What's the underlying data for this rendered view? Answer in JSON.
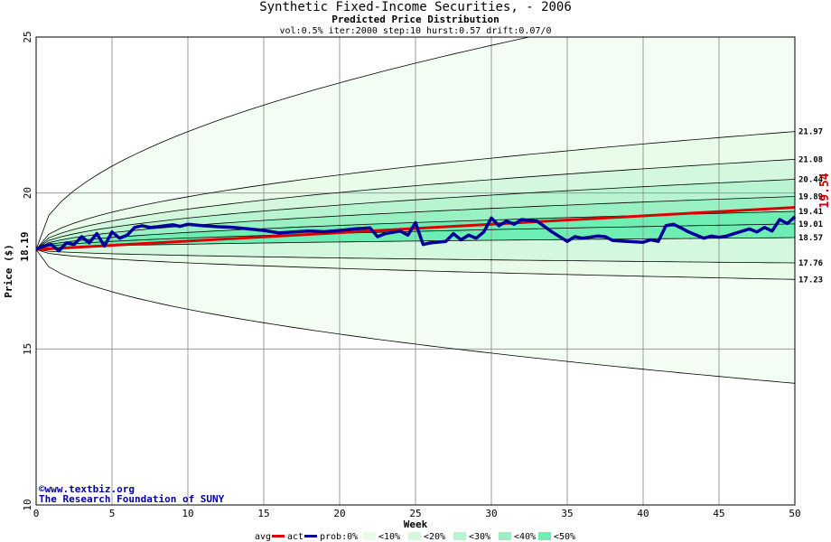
{
  "title": "Synthetic Fixed-Income Securities,  - 2006",
  "subtitle": "Predicted Price Distribution",
  "params": "vol:0.5% iter:2000 step:10 hurst:0.57 drift:0.07/0",
  "credits": [
    "©www.textbiz.org",
    "The Research Foundation of SUNY"
  ],
  "legend": {
    "avg_label": "avg",
    "act_label": "act",
    "prob_label": "prob:0%",
    "bands": [
      "<10%",
      "<20%",
      "<30%",
      "<40%",
      "<50%"
    ],
    "colors": {
      "avg": "#dd0000",
      "act": "#000099",
      "band_fills": [
        "#e9fbe9",
        "#d3f8dd",
        "#b9f4d0",
        "#99f0c3",
        "#6feeb3"
      ],
      "outer_fill": "#f3fdf3"
    }
  },
  "chart_data": {
    "type": "line",
    "title": "Synthetic Fixed-Income Securities,  - 2006",
    "subtitle": "Predicted Price Distribution",
    "xlabel": "Week",
    "ylabel": "Price ($)",
    "xlim": [
      0,
      50
    ],
    "ylim": [
      10,
      25
    ],
    "x_ticks": [
      0,
      5,
      10,
      15,
      20,
      25,
      30,
      35,
      40,
      45,
      50
    ],
    "y_ticks": [
      10,
      15,
      20,
      25
    ],
    "start_price": "18.19",
    "current_price": "19.54",
    "grid": true,
    "envelope": {
      "upper_end": 25.0,
      "upper_week": 32.5,
      "lower_end": 13.9
    },
    "boundaries": [
      {
        "end": 21.97,
        "label": "21.97"
      },
      {
        "end": 21.08,
        "label": "21.08"
      },
      {
        "end": 20.44,
        "label": "20.44"
      },
      {
        "end": 19.89,
        "label": "19.89"
      },
      {
        "end": 19.41,
        "label": "19.41"
      },
      {
        "end": 19.01,
        "label": "19.01"
      },
      {
        "end": 18.57,
        "label": "18.57"
      },
      {
        "end": 17.76,
        "label": "17.76"
      },
      {
        "end": 17.23,
        "label": "17.23"
      }
    ],
    "series": [
      {
        "name": "avg",
        "x": [
          0,
          50
        ],
        "values": [
          18.19,
          19.54
        ]
      },
      {
        "name": "act",
        "x": [
          0,
          0.5,
          1,
          1.5,
          2,
          2.5,
          3,
          3.5,
          4,
          4.5,
          5,
          5.5,
          6,
          6.5,
          7,
          7.5,
          8,
          8.5,
          9,
          9.5,
          10,
          11,
          12,
          13,
          14,
          15,
          16,
          17,
          18,
          19,
          20,
          21,
          22,
          22.5,
          23,
          24,
          24.5,
          25,
          25.5,
          26,
          27,
          27.5,
          28,
          28.5,
          29,
          29.5,
          30,
          30.5,
          31,
          31.5,
          32,
          32.5,
          33,
          34,
          34.5,
          35,
          35.5,
          36,
          37,
          37.5,
          38,
          39,
          40,
          40.5,
          41,
          41.5,
          42,
          42.5,
          43,
          44,
          44.5,
          45,
          45.5,
          46,
          47,
          47.5,
          48,
          48.5,
          49,
          49.5,
          50
        ],
        "values": [
          18.19,
          18.3,
          18.35,
          18.15,
          18.4,
          18.35,
          18.6,
          18.4,
          18.7,
          18.3,
          18.75,
          18.55,
          18.65,
          18.9,
          18.95,
          18.9,
          18.92,
          18.95,
          18.98,
          18.93,
          19.0,
          18.95,
          18.92,
          18.9,
          18.85,
          18.8,
          18.72,
          18.75,
          18.78,
          18.76,
          18.8,
          18.85,
          18.88,
          18.6,
          18.7,
          18.78,
          18.65,
          19.05,
          18.35,
          18.4,
          18.45,
          18.7,
          18.5,
          18.65,
          18.55,
          18.75,
          19.2,
          18.95,
          19.1,
          19.0,
          19.15,
          19.12,
          19.1,
          18.75,
          18.6,
          18.45,
          18.6,
          18.55,
          18.62,
          18.6,
          18.48,
          18.45,
          18.42,
          18.5,
          18.45,
          18.95,
          19.0,
          18.88,
          18.75,
          18.55,
          18.62,
          18.58,
          18.62,
          18.7,
          18.85,
          18.75,
          18.9,
          18.78,
          19.15,
          19.02,
          19.24
        ]
      }
    ]
  }
}
